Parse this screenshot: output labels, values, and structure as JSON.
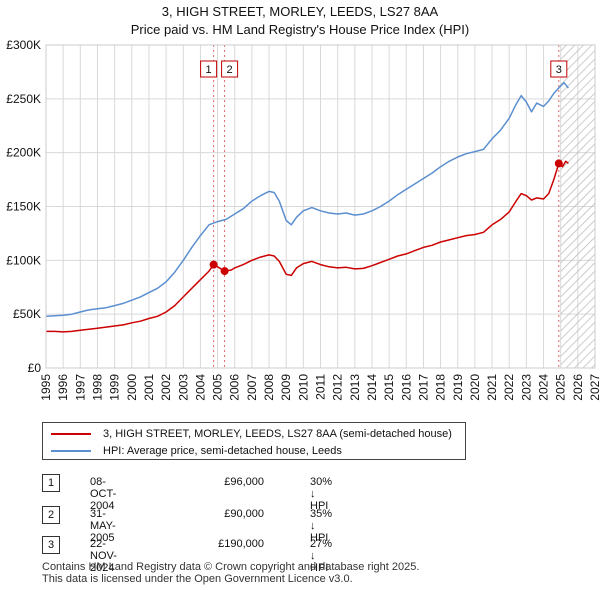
{
  "title_line1": "3, HIGH STREET, MORLEY, LEEDS, LS27 8AA",
  "title_line2": "Price paid vs. HM Land Registry's House Price Index (HPI)",
  "colors": {
    "price": "#cc0000",
    "hpi": "#5b8fd0",
    "grid": "#d9d9d9",
    "marker_line": "#e06666"
  },
  "chart_data": {
    "type": "line",
    "xlim": [
      1995,
      2027
    ],
    "ylim": [
      0,
      300000
    ],
    "x_ticks": [
      1995,
      1996,
      1997,
      1998,
      1999,
      2000,
      2001,
      2002,
      2003,
      2004,
      2005,
      2006,
      2007,
      2008,
      2009,
      2010,
      2011,
      2012,
      2013,
      2014,
      2015,
      2016,
      2017,
      2018,
      2019,
      2020,
      2021,
      2022,
      2023,
      2024,
      2025,
      2026,
      2027
    ],
    "y_ticks": [
      0,
      50000,
      100000,
      150000,
      200000,
      250000,
      300000
    ],
    "y_tick_labels": [
      "£0",
      "£50K",
      "£100K",
      "£150K",
      "£200K",
      "£250K",
      "£300K"
    ],
    "hatch_from": 2025.0,
    "series": [
      {
        "name": "3, HIGH STREET, MORLEY, LEEDS, LS27 8AA (semi-detached house)",
        "color": "#cc0000",
        "x": [
          1995.0,
          1995.5,
          1996.0,
          1996.5,
          1997.0,
          1997.5,
          1998.0,
          1998.5,
          1999.0,
          1999.5,
          2000.0,
          2000.5,
          2001.0,
          2001.5,
          2002.0,
          2002.5,
          2003.0,
          2003.5,
          2004.0,
          2004.5,
          2004.77,
          2005.0,
          2005.41,
          2005.8,
          2006.0,
          2006.5,
          2007.0,
          2007.5,
          2008.0,
          2008.3,
          2008.6,
          2009.0,
          2009.3,
          2009.6,
          2010.0,
          2010.5,
          2011.0,
          2011.5,
          2012.0,
          2012.5,
          2013.0,
          2013.5,
          2014.0,
          2014.5,
          2015.0,
          2015.5,
          2016.0,
          2016.5,
          2017.0,
          2017.5,
          2018.0,
          2018.5,
          2019.0,
          2019.5,
          2020.0,
          2020.5,
          2021.0,
          2021.5,
          2022.0,
          2022.4,
          2022.7,
          2023.0,
          2023.3,
          2023.6,
          2024.0,
          2024.3,
          2024.6,
          2024.89,
          2025.1,
          2025.3,
          2025.45
        ],
        "values": [
          34000,
          34000,
          33500,
          34000,
          35000,
          36000,
          37000,
          38000,
          39000,
          40000,
          42000,
          43500,
          46000,
          48000,
          52000,
          58000,
          66000,
          74000,
          82000,
          90000,
          96000,
          94000,
          90000,
          91000,
          93000,
          96000,
          100000,
          103000,
          105000,
          104000,
          99000,
          87000,
          86000,
          93000,
          97000,
          99000,
          96000,
          94000,
          93000,
          93500,
          92000,
          92500,
          95000,
          98000,
          101000,
          104000,
          106000,
          109000,
          112000,
          114000,
          117000,
          119000,
          121000,
          123000,
          124000,
          126000,
          133000,
          138000,
          145000,
          155000,
          162000,
          160000,
          156000,
          158000,
          157000,
          162000,
          175000,
          190000,
          187000,
          192000,
          190000
        ]
      },
      {
        "name": "HPI: Average price, semi-detached house, Leeds",
        "color": "#5b8fd0",
        "x": [
          1995.0,
          1995.5,
          1996.0,
          1996.5,
          1997.0,
          1997.5,
          1998.0,
          1998.5,
          1999.0,
          1999.5,
          2000.0,
          2000.5,
          2001.0,
          2001.5,
          2002.0,
          2002.5,
          2003.0,
          2003.5,
          2004.0,
          2004.5,
          2005.0,
          2005.5,
          2006.0,
          2006.5,
          2007.0,
          2007.5,
          2008.0,
          2008.3,
          2008.6,
          2009.0,
          2009.3,
          2009.6,
          2010.0,
          2010.5,
          2011.0,
          2011.5,
          2012.0,
          2012.5,
          2013.0,
          2013.5,
          2014.0,
          2014.5,
          2015.0,
          2015.5,
          2016.0,
          2016.5,
          2017.0,
          2017.5,
          2018.0,
          2018.5,
          2019.0,
          2019.5,
          2020.0,
          2020.5,
          2021.0,
          2021.5,
          2022.0,
          2022.4,
          2022.7,
          2023.0,
          2023.3,
          2023.6,
          2024.0,
          2024.3,
          2024.6,
          2025.0,
          2025.2,
          2025.45
        ],
        "values": [
          48000,
          48500,
          49000,
          50000,
          52000,
          54000,
          55000,
          56000,
          58000,
          60000,
          63000,
          66000,
          70000,
          74000,
          80000,
          89000,
          100000,
          112000,
          123000,
          133000,
          136000,
          138000,
          143000,
          148000,
          155000,
          160000,
          164000,
          163000,
          155000,
          137000,
          133000,
          140000,
          146000,
          149000,
          146000,
          144000,
          143000,
          144000,
          142000,
          143000,
          146000,
          150000,
          155000,
          161000,
          166000,
          171000,
          176000,
          181000,
          187000,
          192000,
          196000,
          199000,
          201000,
          203000,
          213000,
          221000,
          232000,
          245000,
          253000,
          247000,
          238000,
          246000,
          243000,
          248000,
          255000,
          262000,
          265000,
          260000
        ]
      }
    ],
    "transactions": [
      {
        "id": "1",
        "date": "08-OCT-2004",
        "price": "£96,000",
        "hpi": "30% ↓ HPI",
        "x": 2004.77,
        "value": 96000
      },
      {
        "id": "2",
        "date": "31-MAY-2005",
        "price": "£90,000",
        "hpi": "35% ↓ HPI",
        "x": 2005.41,
        "value": 90000
      },
      {
        "id": "3",
        "date": "22-NOV-2024",
        "price": "£190,000",
        "hpi": "27% ↓ HPI",
        "x": 2024.89,
        "value": 190000
      }
    ]
  },
  "footer_line1": "Contains HM Land Registry data © Crown copyright and database right 2025.",
  "footer_line2": "This data is licensed under the Open Government Licence v3.0."
}
